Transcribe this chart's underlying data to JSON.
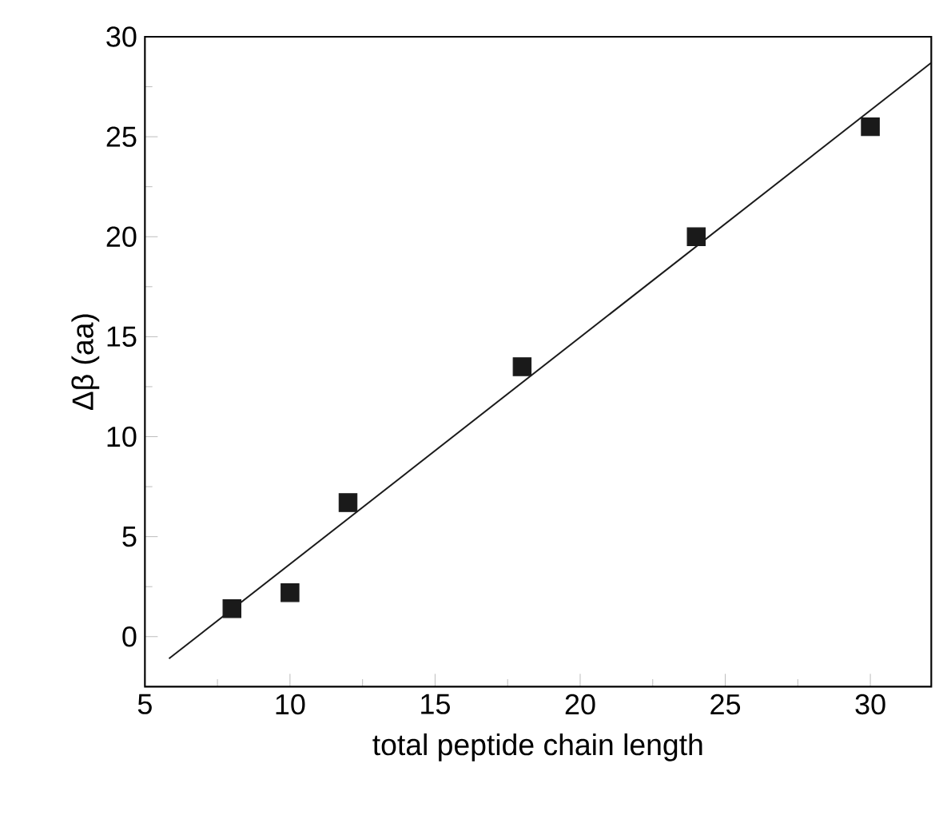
{
  "chart_data": {
    "type": "scatter",
    "xlabel": "total peptide chain length",
    "ylabel": "Δβ (aa)",
    "xlim": [
      5,
      32.1
    ],
    "ylim": [
      -2.5,
      30
    ],
    "xticks": [
      5,
      10,
      15,
      20,
      25,
      30
    ],
    "yticks": [
      0,
      5,
      10,
      15,
      20,
      25,
      30
    ],
    "grid": false,
    "series": [
      {
        "marker": "square",
        "color": "#1a1a1a",
        "x": [
          8,
          10,
          12,
          18,
          24,
          30
        ],
        "values": [
          1.4,
          2.2,
          6.7,
          13.5,
          20.0,
          25.5
        ]
      },
      {
        "type": "line",
        "marker": "none",
        "color": "#1a1a1a",
        "x": [
          5.83,
          32.1
        ],
        "values": [
          -1.1,
          28.7
        ]
      }
    ]
  }
}
